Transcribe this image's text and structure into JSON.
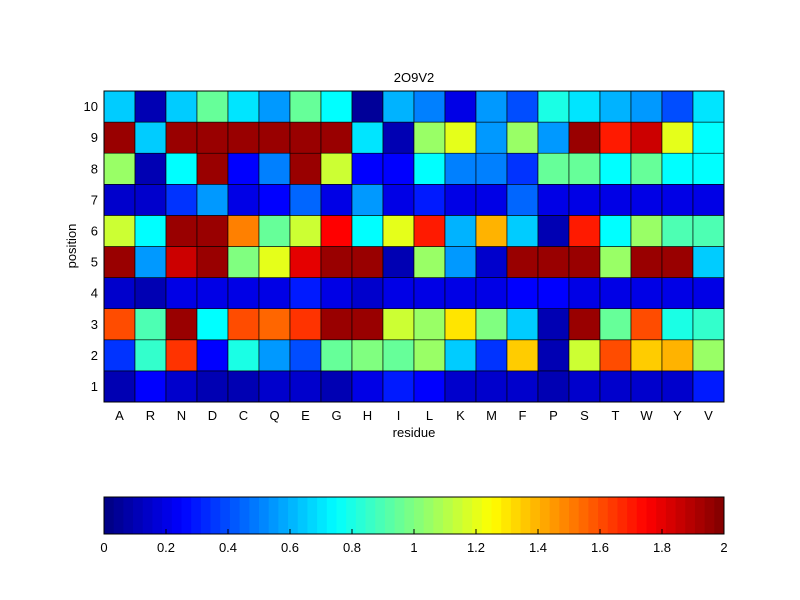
{
  "chart_data": {
    "type": "heatmap",
    "title": "2O9V2",
    "xlabel": "residue",
    "ylabel": "position",
    "x_categories": [
      "A",
      "R",
      "N",
      "D",
      "C",
      "Q",
      "E",
      "G",
      "H",
      "I",
      "L",
      "K",
      "M",
      "F",
      "P",
      "S",
      "T",
      "W",
      "Y",
      "V"
    ],
    "y_categories": [
      "1",
      "2",
      "3",
      "4",
      "5",
      "6",
      "7",
      "8",
      "9",
      "10"
    ],
    "colormap": "jet",
    "clim": [
      0,
      2
    ],
    "colorbar": {
      "placement": "bottom",
      "ticks": [
        0,
        0.2,
        0.4,
        0.6,
        0.8,
        1,
        1.2,
        1.4,
        1.6,
        1.8,
        2
      ],
      "tick_labels": [
        "0",
        "0.2",
        "0.4",
        "0.6",
        "0.8",
        "1",
        "1.2",
        "1.4",
        "1.6",
        "1.8",
        "2"
      ]
    },
    "grid": true,
    "values": [
      [
        0.1,
        0.25,
        0.15,
        0.1,
        0.1,
        0.15,
        0.15,
        0.1,
        0.2,
        0.3,
        0.25,
        0.15,
        0.15,
        0.15,
        0.1,
        0.15,
        0.15,
        0.15,
        0.15,
        0.3
      ],
      [
        0.35,
        0.85,
        1.65,
        0.25,
        0.8,
        0.55,
        0.4,
        0.95,
        1.0,
        0.95,
        1.05,
        0.65,
        0.35,
        1.35,
        0.1,
        1.15,
        1.6,
        1.35,
        1.4,
        1.05
      ],
      [
        1.6,
        0.9,
        1.95,
        0.75,
        1.6,
        1.55,
        1.65,
        1.95,
        1.95,
        1.15,
        1.05,
        1.3,
        1.0,
        0.65,
        0.1,
        1.95,
        0.95,
        1.6,
        0.8,
        0.85
      ],
      [
        0.15,
        0.1,
        0.2,
        0.2,
        0.2,
        0.2,
        0.3,
        0.2,
        0.15,
        0.2,
        0.2,
        0.2,
        0.2,
        0.25,
        0.25,
        0.2,
        0.2,
        0.2,
        0.2,
        0.2
      ],
      [
        1.95,
        0.55,
        1.85,
        1.95,
        1.0,
        1.2,
        1.8,
        1.95,
        1.95,
        0.1,
        1.05,
        0.55,
        0.15,
        1.95,
        1.95,
        1.95,
        1.05,
        1.95,
        1.95,
        0.65
      ],
      [
        1.15,
        0.75,
        1.95,
        1.95,
        1.5,
        0.95,
        1.15,
        1.75,
        0.75,
        1.2,
        1.7,
        0.6,
        1.4,
        0.65,
        0.1,
        1.7,
        0.75,
        1.05,
        0.9,
        0.9
      ],
      [
        0.15,
        0.15,
        0.35,
        0.55,
        0.2,
        0.25,
        0.45,
        0.2,
        0.55,
        0.2,
        0.3,
        0.2,
        0.2,
        0.45,
        0.2,
        0.2,
        0.2,
        0.2,
        0.2,
        0.2
      ],
      [
        1.05,
        0.1,
        0.75,
        1.95,
        0.25,
        0.5,
        1.95,
        1.15,
        0.25,
        0.25,
        0.75,
        0.5,
        0.5,
        0.35,
        0.95,
        0.95,
        0.75,
        0.95,
        0.75,
        0.75
      ],
      [
        1.95,
        0.65,
        1.95,
        1.95,
        1.95,
        1.95,
        1.95,
        1.95,
        0.7,
        0.1,
        1.05,
        1.2,
        0.55,
        1.05,
        0.55,
        1.95,
        1.7,
        1.85,
        1.2,
        0.75
      ],
      [
        0.65,
        0.1,
        0.65,
        0.95,
        0.7,
        0.55,
        0.95,
        0.75,
        0.05,
        0.6,
        0.5,
        0.2,
        0.55,
        0.4,
        0.8,
        0.7,
        0.6,
        0.55,
        0.4,
        0.7
      ]
    ]
  }
}
